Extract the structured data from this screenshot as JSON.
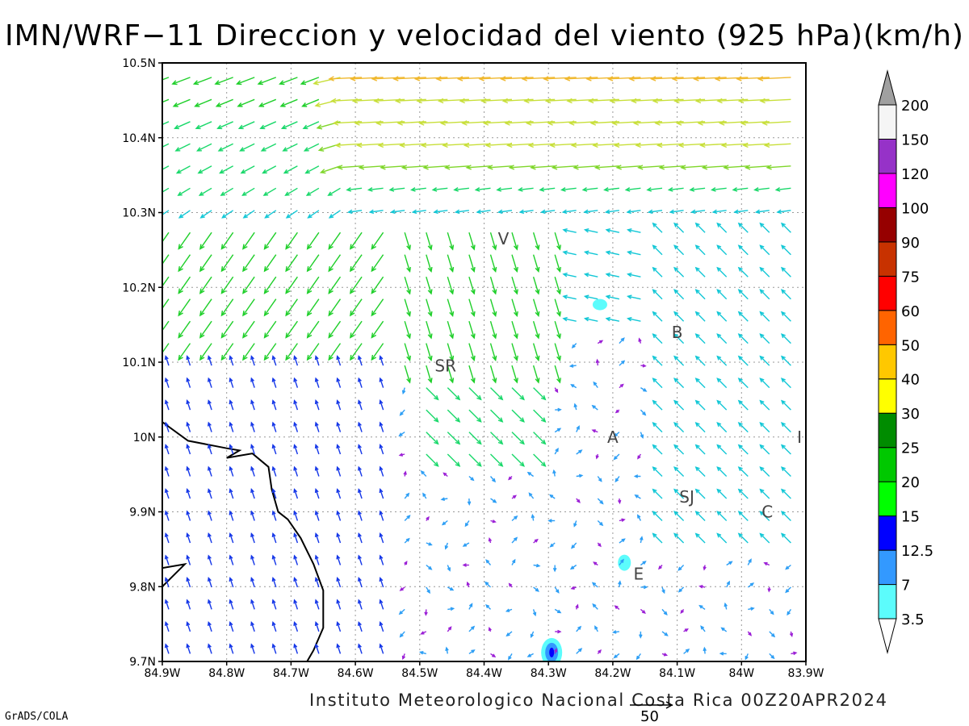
{
  "title": "IMN/WRF−11 Direccion y velocidad del viento (925 hPa)(km/h)",
  "footer": "Instituto Meteorologico Nacional Costa Rica 00Z20APR2024",
  "software": "GrADS/COLA",
  "reference_vector": {
    "label": "50",
    "value": 50
  },
  "axes": {
    "lon_ticks": [
      "84.9W",
      "84.8W",
      "84.7W",
      "84.6W",
      "84.5W",
      "84.4W",
      "84.3W",
      "84.2W",
      "84.1W",
      "84W",
      "83.9W"
    ],
    "lat_ticks": [
      "9.7N",
      "9.8N",
      "9.9N",
      "10N",
      "10.1N",
      "10.2N",
      "10.3N",
      "10.4N",
      "10.5N"
    ],
    "lon_range": [
      -84.9,
      -83.9
    ],
    "lat_range": [
      9.7,
      10.5
    ],
    "grid": true
  },
  "colorbar": {
    "labels": [
      "3.5",
      "7",
      "12.5",
      "15",
      "20",
      "25",
      "30",
      "40",
      "50",
      "60",
      "75",
      "90",
      "100",
      "120",
      "150",
      "200"
    ],
    "colors": [
      "#5cfcfc",
      "#3399ff",
      "#0000ff",
      "#00ff00",
      "#00c800",
      "#008c00",
      "#ffff00",
      "#ffc800",
      "#ff6400",
      "#ff0000",
      "#c83200",
      "#960000",
      "#ff00ff",
      "#9632c8",
      "#f5f5f5",
      "#a0a0a0"
    ]
  },
  "stations": [
    {
      "label": "V",
      "lon": -84.37,
      "lat": 10.265
    },
    {
      "label": "B",
      "lon": -84.1,
      "lat": 10.14
    },
    {
      "label": "SR",
      "lon": -84.46,
      "lat": 10.095
    },
    {
      "label": "A",
      "lon": -84.2,
      "lat": 10.0
    },
    {
      "label": "I",
      "lon": -83.91,
      "lat": 10.0
    },
    {
      "label": "SJ",
      "lon": -84.085,
      "lat": 9.92
    },
    {
      "label": "C",
      "lon": -83.96,
      "lat": 9.9
    },
    {
      "label": "E",
      "lon": -84.16,
      "lat": 9.817
    }
  ]
}
